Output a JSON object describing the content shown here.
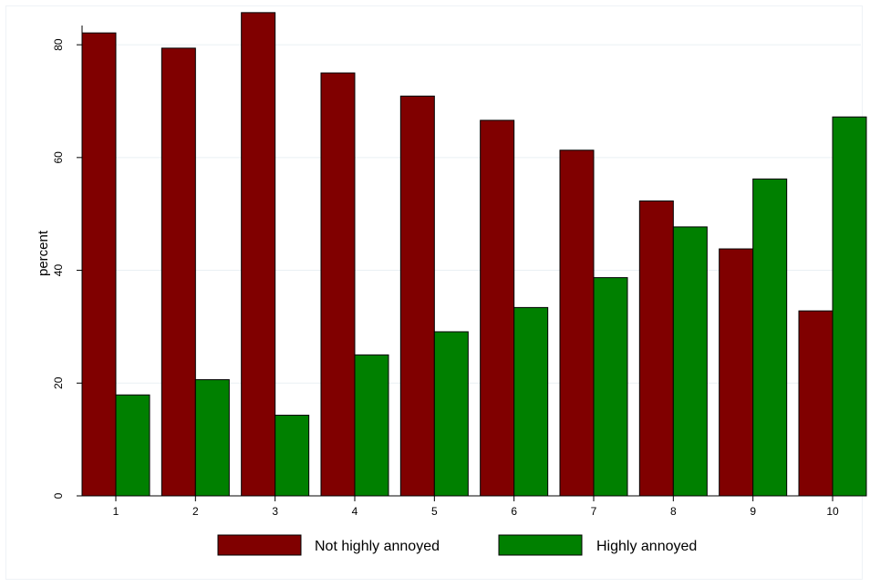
{
  "chart_data": {
    "type": "bar",
    "categories": [
      "1",
      "2",
      "3",
      "4",
      "5",
      "6",
      "7",
      "8",
      "9",
      "10"
    ],
    "series": [
      {
        "name": "Not highly annoyed",
        "color": "#800000",
        "values": [
          82.1,
          79.4,
          85.7,
          75.0,
          70.9,
          66.6,
          61.3,
          52.3,
          43.8,
          32.8
        ]
      },
      {
        "name": "Highly annoyed",
        "color": "#008000",
        "values": [
          17.9,
          20.6,
          14.3,
          25.0,
          29.1,
          33.4,
          38.7,
          47.7,
          56.2,
          67.2
        ]
      }
    ],
    "title": "",
    "xlabel": "",
    "ylabel": "percent",
    "ylim": [
      0,
      86
    ],
    "yticks": [
      0,
      20,
      40,
      60,
      80
    ],
    "grid": true,
    "legend_position": "bottom"
  }
}
